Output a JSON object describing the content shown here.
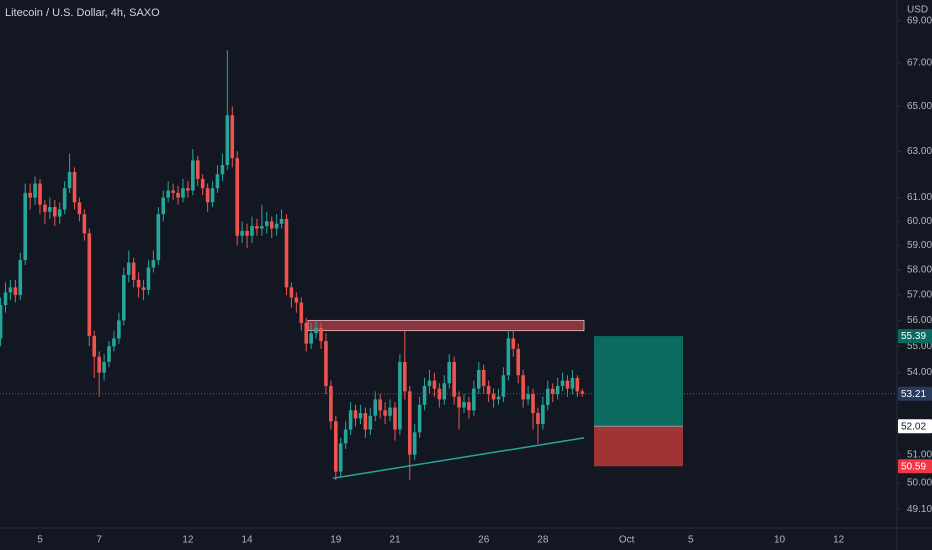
{
  "chart_data": {
    "type": "candlestick",
    "title": "Litecoin / U.S. Dollar, 4h, SAXO",
    "currency": "USD",
    "log": true,
    "grid": false,
    "up_color": "#26a69a",
    "down_color": "#ef5350",
    "ylim": [
      48.46,
      70.0
    ],
    "yticks": [
      {
        "value": 49.1,
        "label": "49.10"
      },
      {
        "value": 50,
        "label": "50.00"
      },
      {
        "value": 51,
        "label": "51.00"
      },
      {
        "value": 54,
        "label": "54.00"
      },
      {
        "value": 55,
        "label": "55.00"
      },
      {
        "value": 56,
        "label": "56.00"
      },
      {
        "value": 57,
        "label": "57.00"
      },
      {
        "value": 58,
        "label": "58.00"
      },
      {
        "value": 59,
        "label": "59.00"
      },
      {
        "value": 60,
        "label": "60.00"
      },
      {
        "value": 61,
        "label": "61.00"
      },
      {
        "value": 63,
        "label": "63.00"
      },
      {
        "value": 65,
        "label": "65.00"
      },
      {
        "value": 67,
        "label": "67.00"
      },
      {
        "value": 69,
        "label": "69.00"
      }
    ],
    "categories": [
      null,
      null,
      null,
      null,
      null,
      null,
      null,
      null,
      "5",
      null,
      null,
      null,
      null,
      null,
      null,
      null,
      null,
      null,
      null,
      null,
      "7",
      null,
      null,
      null,
      null,
      null,
      null,
      null,
      null,
      null,
      null,
      null,
      null,
      null,
      null,
      null,
      null,
      null,
      "12",
      null,
      null,
      null,
      null,
      null,
      null,
      null,
      null,
      null,
      null,
      null,
      "14",
      null,
      null,
      null,
      null,
      null,
      null,
      null,
      null,
      null,
      null,
      null,
      null,
      null,
      null,
      null,
      null,
      null,
      "19",
      null,
      null,
      null,
      null,
      null,
      null,
      null,
      null,
      null,
      null,
      null,
      "21",
      null,
      null,
      null,
      null,
      null,
      null,
      null,
      null,
      null,
      null,
      null,
      null,
      null,
      null,
      null,
      null,
      null,
      "26",
      null,
      null,
      null,
      null,
      null,
      null,
      null,
      null,
      null,
      null,
      null,
      "28",
      null,
      null,
      null,
      null,
      null,
      null,
      null,
      null,
      null,
      null,
      null,
      null,
      null,
      null,
      null,
      null,
      "Oct",
      null,
      null,
      null,
      null,
      null,
      null,
      null,
      null,
      null,
      null,
      null,
      null,
      "5",
      null,
      null,
      null,
      null,
      null,
      null,
      null,
      null,
      null,
      null,
      null,
      null,
      null,
      null,
      null,
      null,
      null,
      "10",
      null,
      null,
      null,
      null,
      null,
      null,
      null,
      null,
      null,
      null,
      null,
      "12",
      null
    ],
    "open": [
      55.3,
      56.6,
      57.1,
      57.3,
      57.0,
      58.4,
      61.2,
      61.0,
      61.6,
      60.7,
      60.4,
      60.6,
      60.2,
      60.5,
      61.4,
      62.1,
      60.8,
      60.3,
      59.5,
      55.4,
      54.6,
      54.0,
      54.4,
      55.0,
      55.3,
      56.0,
      57.8,
      58.3,
      57.6,
      57.3,
      57.2,
      58.1,
      58.4,
      60.3,
      61.0,
      61.3,
      61.2,
      61.0,
      61.4,
      61.3,
      62.6,
      61.8,
      61.4,
      60.8,
      61.4,
      62.0,
      62.4,
      64.6,
      62.7,
      59.4,
      59.6,
      59.4,
      59.8,
      59.7,
      59.8,
      60.0,
      59.7,
      59.9,
      60.1,
      57.3,
      56.9,
      56.7,
      55.9,
      55.1,
      55.5,
      55.7,
      55.2,
      53.5,
      52.2,
      50.4,
      51.4,
      51.9,
      52.6,
      52.3,
      52.5,
      51.9,
      52.4,
      53.0,
      52.6,
      52.4,
      52.7,
      51.9,
      54.4,
      53.3,
      51.0,
      51.8,
      52.8,
      53.5,
      53.7,
      53.4,
      53.0,
      53.6,
      54.4,
      53.1,
      52.7,
      52.9,
      52.6,
      53.4,
      54.1,
      53.5,
      53.2,
      53.0,
      53.1,
      53.9,
      55.3,
      54.9,
      53.9,
      53.0,
      53.2,
      52.5,
      52.1,
      52.8,
      53.4,
      53.2,
      53.5,
      53.7,
      53.4,
      53.8,
      53.3,
      null,
      null,
      null,
      null,
      null,
      null,
      null,
      null,
      null,
      null,
      null,
      null,
      null,
      null,
      null,
      null,
      null,
      null,
      null,
      null,
      null,
      null,
      null,
      null,
      null,
      null,
      null,
      null,
      null,
      null,
      null,
      null,
      null,
      null,
      null,
      null,
      null,
      null,
      null,
      null,
      null,
      null,
      null,
      null,
      null,
      null,
      null,
      null,
      null,
      null,
      null,
      null,
      null
    ],
    "high": [
      56.9,
      57.5,
      57.6,
      57.6,
      58.7,
      61.6,
      61.6,
      61.9,
      61.8,
      60.9,
      61.0,
      60.9,
      60.8,
      61.7,
      62.9,
      62.3,
      61.0,
      60.5,
      59.7,
      55.6,
      54.8,
      54.7,
      55.2,
      55.6,
      56.3,
      58.1,
      58.8,
      58.5,
      57.9,
      57.6,
      58.4,
      58.8,
      60.6,
      61.3,
      61.7,
      61.6,
      61.5,
      61.8,
      61.7,
      63.1,
      62.8,
      62.0,
      61.6,
      61.7,
      62.4,
      62.9,
      67.6,
      65.0,
      63.0,
      60.0,
      59.9,
      60.2,
      60.1,
      60.7,
      60.4,
      60.2,
      60.3,
      60.5,
      60.3,
      57.5,
      57.1,
      56.9,
      56.1,
      55.9,
      56.0,
      55.9,
      55.5,
      53.7,
      52.4,
      51.6,
      52.2,
      52.9,
      52.8,
      52.8,
      52.7,
      52.7,
      53.3,
      53.2,
      52.9,
      53.0,
      52.9,
      54.7,
      55.6,
      53.5,
      52.1,
      53.1,
      53.8,
      54.1,
      54.0,
      53.6,
      53.9,
      54.7,
      54.6,
      53.3,
      53.2,
      53.1,
      53.7,
      54.4,
      54.3,
      53.7,
      53.4,
      53.4,
      54.2,
      55.6,
      55.6,
      55.1,
      54.1,
      53.5,
      53.4,
      52.7,
      53.1,
      53.7,
      53.6,
      53.8,
      54.0,
      53.9,
      54.1,
      53.9,
      53.4,
      null,
      null,
      null,
      null,
      null,
      null,
      null,
      null,
      null,
      null,
      null,
      null,
      null,
      null,
      null,
      null,
      null,
      null,
      null,
      null,
      null,
      null,
      null,
      null,
      null,
      null,
      null,
      null,
      null,
      null,
      null,
      null,
      null,
      null,
      null,
      null,
      null,
      null,
      null,
      null,
      null,
      null,
      null,
      null,
      null,
      null,
      null,
      null,
      null,
      null,
      null,
      null,
      null
    ],
    "low": [
      55.0,
      56.3,
      56.8,
      56.7,
      56.8,
      58.2,
      60.5,
      60.7,
      60.3,
      59.9,
      60.1,
      59.8,
      59.9,
      60.3,
      61.2,
      60.5,
      60.0,
      59.2,
      55.0,
      53.8,
      53.1,
      53.7,
      54.2,
      54.8,
      55.1,
      55.8,
      57.5,
      57.3,
      56.9,
      56.8,
      57.0,
      57.9,
      58.2,
      60.0,
      60.8,
      60.9,
      60.7,
      60.8,
      61.0,
      61.1,
      61.5,
      61.1,
      60.4,
      60.6,
      61.2,
      61.7,
      62.2,
      62.3,
      59.0,
      59.1,
      58.9,
      59.1,
      59.4,
      59.4,
      59.5,
      59.3,
      59.4,
      59.7,
      57.0,
      56.5,
      56.3,
      55.6,
      54.8,
      54.9,
      55.3,
      54.9,
      53.2,
      51.9,
      50.1,
      50.2,
      51.2,
      51.7,
      52.0,
      52.1,
      51.6,
      51.7,
      52.2,
      52.3,
      52.1,
      52.2,
      51.5,
      51.7,
      53.0,
      50.1,
      50.8,
      51.6,
      52.6,
      53.2,
      53.1,
      52.7,
      52.8,
      53.4,
      52.8,
      51.9,
      52.5,
      52.3,
      52.4,
      53.2,
      53.2,
      52.9,
      52.7,
      52.8,
      52.9,
      53.7,
      54.6,
      53.6,
      52.7,
      52.8,
      51.9,
      51.4,
      51.9,
      52.6,
      52.9,
      53.0,
      53.3,
      53.1,
      53.2,
      53.1,
      53.1,
      null,
      null,
      null,
      null,
      null,
      null,
      null,
      null,
      null,
      null,
      null,
      null,
      null,
      null,
      null,
      null,
      null,
      null,
      null,
      null,
      null,
      null,
      null,
      null,
      null,
      null,
      null,
      null,
      null,
      null,
      null,
      null,
      null,
      null,
      null,
      null,
      null,
      null,
      null,
      null,
      null,
      null,
      null,
      null,
      null,
      null,
      null,
      null,
      null,
      null,
      null,
      null,
      null
    ],
    "close": [
      56.6,
      57.1,
      57.3,
      57.0,
      58.4,
      61.2,
      61.0,
      61.6,
      60.7,
      60.4,
      60.6,
      60.2,
      60.5,
      61.4,
      62.1,
      60.8,
      60.3,
      59.5,
      55.4,
      54.6,
      54.0,
      54.4,
      55.0,
      55.3,
      56.0,
      57.8,
      58.3,
      57.6,
      57.3,
      57.2,
      58.1,
      58.4,
      60.3,
      61.0,
      61.3,
      61.2,
      61.0,
      61.4,
      61.3,
      62.6,
      61.8,
      61.4,
      60.8,
      61.4,
      62.0,
      62.4,
      64.6,
      62.7,
      59.4,
      59.6,
      59.4,
      59.8,
      59.7,
      59.8,
      60.0,
      59.7,
      59.9,
      60.1,
      57.3,
      56.9,
      56.7,
      55.9,
      55.1,
      55.5,
      55.7,
      55.2,
      53.5,
      52.2,
      50.4,
      51.4,
      51.9,
      52.6,
      52.3,
      52.5,
      51.9,
      52.4,
      53.0,
      52.6,
      52.4,
      52.7,
      51.9,
      54.4,
      53.3,
      51.0,
      51.8,
      52.8,
      53.5,
      53.7,
      53.4,
      53.0,
      53.6,
      54.4,
      53.1,
      52.7,
      52.9,
      52.6,
      53.4,
      54.1,
      53.5,
      53.2,
      53.0,
      53.1,
      53.9,
      55.3,
      54.9,
      53.9,
      53.0,
      53.2,
      52.5,
      52.1,
      52.8,
      53.4,
      53.2,
      53.5,
      53.7,
      53.4,
      53.8,
      53.3,
      53.21,
      null,
      null,
      null,
      null,
      null,
      null,
      null,
      null,
      null,
      null,
      null,
      null,
      null,
      null,
      null,
      null,
      null,
      null,
      null,
      null,
      null,
      null,
      null,
      null,
      null,
      null,
      null,
      null,
      null,
      null,
      null,
      null,
      null,
      null,
      null,
      null,
      null,
      null,
      null,
      null,
      null,
      null,
      null,
      null,
      null,
      null,
      null,
      null,
      null,
      null,
      null,
      null,
      null
    ],
    "last_price": 53.21,
    "last_price_color": "#2a3a5c",
    "resistance_zone": {
      "values": [
        55.6,
        56.0
      ],
      "color": "#b2404a"
    },
    "trendline": {
      "values": [
        50.17,
        51.6
      ],
      "color": "#26a69a"
    },
    "position": {
      "target": 55.39,
      "entry": 52.02,
      "stop": 50.59,
      "target_color": "#0b6b60",
      "stop_color": "#a03434"
    }
  }
}
